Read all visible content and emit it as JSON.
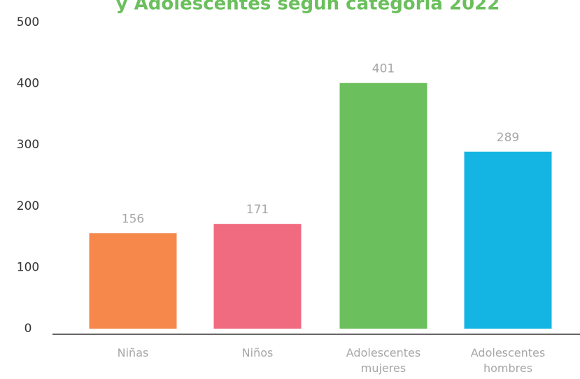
{
  "chart_data": {
    "type": "bar",
    "title": "y Adolescentes según categoría 2022",
    "categories": [
      "Niñas",
      "Niños",
      "Adolescentes mujeres",
      "Adolescentes hombres"
    ],
    "values": [
      156,
      171,
      401,
      289
    ],
    "colors": [
      "#f5884a",
      "#f06a80",
      "#6bbf5c",
      "#14b5e3"
    ],
    "ylim": [
      0,
      500
    ],
    "yticks": [
      0,
      100,
      200,
      300,
      400,
      500
    ],
    "grid": false
  }
}
